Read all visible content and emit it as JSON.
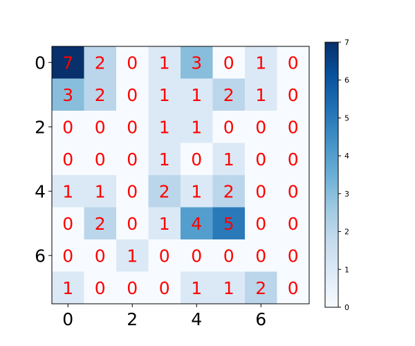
{
  "chart_data": {
    "type": "heatmap",
    "title": "",
    "xlabel": "",
    "ylabel": "",
    "matrix": [
      [
        7,
        2,
        0,
        1,
        3,
        0,
        1,
        0
      ],
      [
        3,
        2,
        0,
        1,
        1,
        2,
        1,
        0
      ],
      [
        0,
        0,
        0,
        1,
        1,
        0,
        0,
        0
      ],
      [
        0,
        0,
        0,
        1,
        0,
        1,
        0,
        0
      ],
      [
        1,
        1,
        0,
        2,
        1,
        2,
        0,
        0
      ],
      [
        0,
        2,
        0,
        1,
        4,
        5,
        0,
        0
      ],
      [
        0,
        0,
        1,
        0,
        0,
        0,
        0,
        0
      ],
      [
        1,
        0,
        0,
        0,
        1,
        1,
        2,
        0
      ]
    ],
    "x_ticks": [
      "0",
      "2",
      "4",
      "6"
    ],
    "y_ticks": [
      "0",
      "2",
      "4",
      "6"
    ],
    "colorbar": {
      "colormap": "Blues",
      "range": [
        0,
        7
      ],
      "ticks": [
        "0",
        "1",
        "2",
        "3",
        "4",
        "5",
        "6",
        "7"
      ]
    },
    "annotation_color": "#ff0000",
    "grid": false,
    "legend": "none"
  }
}
